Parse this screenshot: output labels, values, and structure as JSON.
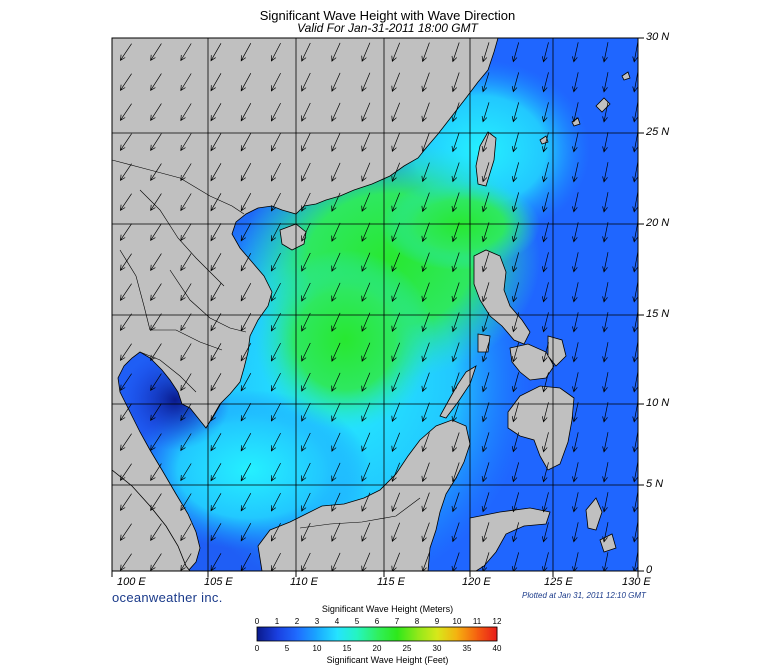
{
  "title": "Significant Wave Height with Wave Direction",
  "subtitle": "Valid For Jan-31-2011 18:00 GMT",
  "lat_labels": [
    "30 N",
    "25 N",
    "20 N",
    "15 N",
    "10 N",
    "5 N",
    "0"
  ],
  "lon_labels": [
    "100 E",
    "105 E",
    "110 E",
    "115 E",
    "120 E",
    "125 E",
    "130 E"
  ],
  "brand": "oceanweather inc.",
  "plotted": "Plotted at Jan 31, 2011 12:10 GMT",
  "colorbar": {
    "title_meters": "Significant Wave Height (Meters)",
    "title_feet": "Significant Wave Height (Feet)",
    "meter_ticks": [
      "0",
      "1",
      "2",
      "3",
      "4",
      "5",
      "6",
      "7",
      "8",
      "9",
      "10",
      "11",
      "12"
    ],
    "feet_ticks": [
      "0",
      "5",
      "10",
      "15",
      "20",
      "25",
      "30",
      "35",
      "40"
    ],
    "colors": [
      "#0a1a8c",
      "#1a3fe0",
      "#1f6cff",
      "#1aa8ff",
      "#25e3ff",
      "#25f5c0",
      "#30f060",
      "#2ee81a",
      "#8ee81a",
      "#d8e81a",
      "#f5b010",
      "#f56010",
      "#e81a1a"
    ]
  },
  "colors": {
    "land": "#c0c0c0",
    "open_ocean": "#2a6cf0",
    "deep_blue": "#0a1a8c",
    "cyan": "#25d8ff",
    "green": "#30e85a"
  }
}
